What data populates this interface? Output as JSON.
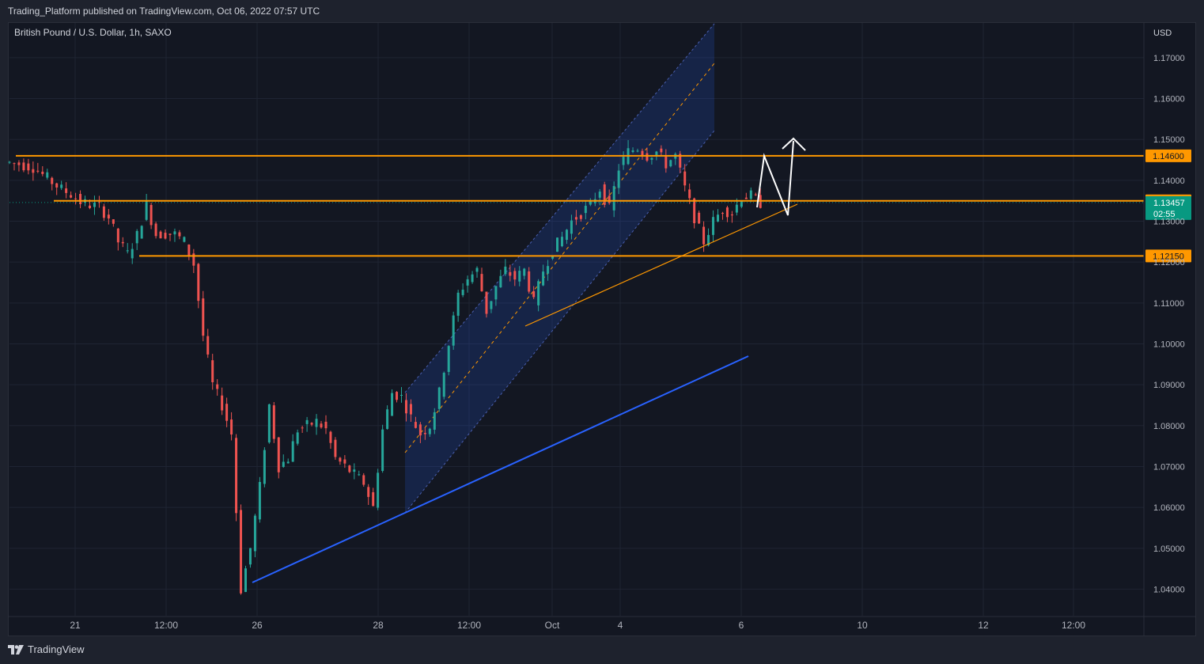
{
  "header": {
    "publish_text": "Trading_Platform published on TradingView.com, Oct 06, 2022 07:57 UTC"
  },
  "footer": {
    "brand": "TradingView"
  },
  "chart_data": {
    "type": "candlestick",
    "title": "British Pound / U.S. Dollar, 1h, SAXO",
    "currency_label": "USD",
    "ylim": [
      1.0335,
      1.1785
    ],
    "y_ticks": [
      "1.04000",
      "1.05000",
      "1.06000",
      "1.07000",
      "1.08000",
      "1.09000",
      "1.10000",
      "1.11000",
      "1.12000",
      "1.13000",
      "1.14000",
      "1.15000",
      "1.16000",
      "1.17000"
    ],
    "x_ticks": [
      "21",
      "12:00",
      "26",
      "28",
      "12:00",
      "Oct",
      "4",
      "6",
      "10",
      "12",
      "12:00"
    ],
    "horizontal_levels": [
      {
        "label": "1.14600",
        "value": 1.146,
        "color": "#ff9800"
      },
      {
        "label": "1.13500",
        "value": 1.135,
        "color": "#ff9800"
      },
      {
        "label": "1.12150",
        "value": 1.1215,
        "color": "#ff9800"
      }
    ],
    "current_price": {
      "label": "1.13457",
      "value": 1.13457,
      "countdown": "02:55",
      "color": "#089981"
    },
    "colors": {
      "up": "#26a69a",
      "down": "#ef5350",
      "channel": "#2962ff",
      "trend": "#2962ff",
      "support": "#ff9800",
      "projection": "#ffffff"
    },
    "price_path": [
      [
        0,
        1.1445
      ],
      [
        3,
        1.144
      ],
      [
        6,
        1.1432
      ],
      [
        9,
        1.1405
      ],
      [
        12,
        1.1378
      ],
      [
        14,
        1.1366
      ],
      [
        16,
        1.1347
      ],
      [
        18,
        1.134
      ],
      [
        20,
        1.1335
      ],
      [
        22,
        1.131
      ],
      [
        24,
        1.125
      ],
      [
        26,
        1.122
      ],
      [
        28,
        1.1265
      ],
      [
        30,
        1.134
      ],
      [
        32,
        1.1268
      ],
      [
        34,
        1.127
      ],
      [
        36,
        1.1268
      ],
      [
        38,
        1.125
      ],
      [
        40,
        1.1195
      ],
      [
        42,
        1.102
      ],
      [
        44,
        1.09
      ],
      [
        46,
        1.085
      ],
      [
        48,
        1.078
      ],
      [
        50,
        1.04
      ],
      [
        52,
        1.05
      ],
      [
        54,
        1.065
      ],
      [
        56,
        1.085
      ],
      [
        58,
        1.07
      ],
      [
        60,
        1.072
      ],
      [
        62,
        1.079
      ],
      [
        64,
        1.08
      ],
      [
        66,
        1.081
      ],
      [
        68,
        1.079
      ],
      [
        70,
        1.072
      ],
      [
        72,
        1.07
      ],
      [
        74,
        1.068
      ],
      [
        76,
        1.066
      ],
      [
        78,
        1.06
      ],
      [
        80,
        1.079
      ],
      [
        82,
        1.088
      ],
      [
        84,
        1.087
      ],
      [
        86,
        1.082
      ],
      [
        88,
        1.078
      ],
      [
        90,
        1.08
      ],
      [
        92,
        1.088
      ],
      [
        94,
        1.1
      ],
      [
        96,
        1.112
      ],
      [
        98,
        1.116
      ],
      [
        100,
        1.118
      ],
      [
        102,
        1.108
      ],
      [
        104,
        1.114
      ],
      [
        106,
        1.118
      ],
      [
        108,
        1.116
      ],
      [
        110,
        1.118
      ],
      [
        112,
        1.11
      ],
      [
        114,
        1.118
      ],
      [
        116,
        1.123
      ],
      [
        118,
        1.126
      ],
      [
        120,
        1.13
      ],
      [
        122,
        1.132
      ],
      [
        124,
        1.134
      ],
      [
        126,
        1.138
      ],
      [
        128,
        1.133
      ],
      [
        130,
        1.143
      ],
      [
        132,
        1.147
      ],
      [
        134,
        1.148
      ],
      [
        136,
        1.146
      ],
      [
        138,
        1.147
      ],
      [
        140,
        1.144
      ],
      [
        142,
        1.146
      ],
      [
        144,
        1.138
      ],
      [
        146,
        1.131
      ],
      [
        148,
        1.125
      ],
      [
        150,
        1.13
      ],
      [
        152,
        1.133
      ],
      [
        154,
        1.132
      ],
      [
        156,
        1.136
      ],
      [
        158,
        1.1362
      ],
      [
        160,
        1.1345
      ]
    ]
  }
}
